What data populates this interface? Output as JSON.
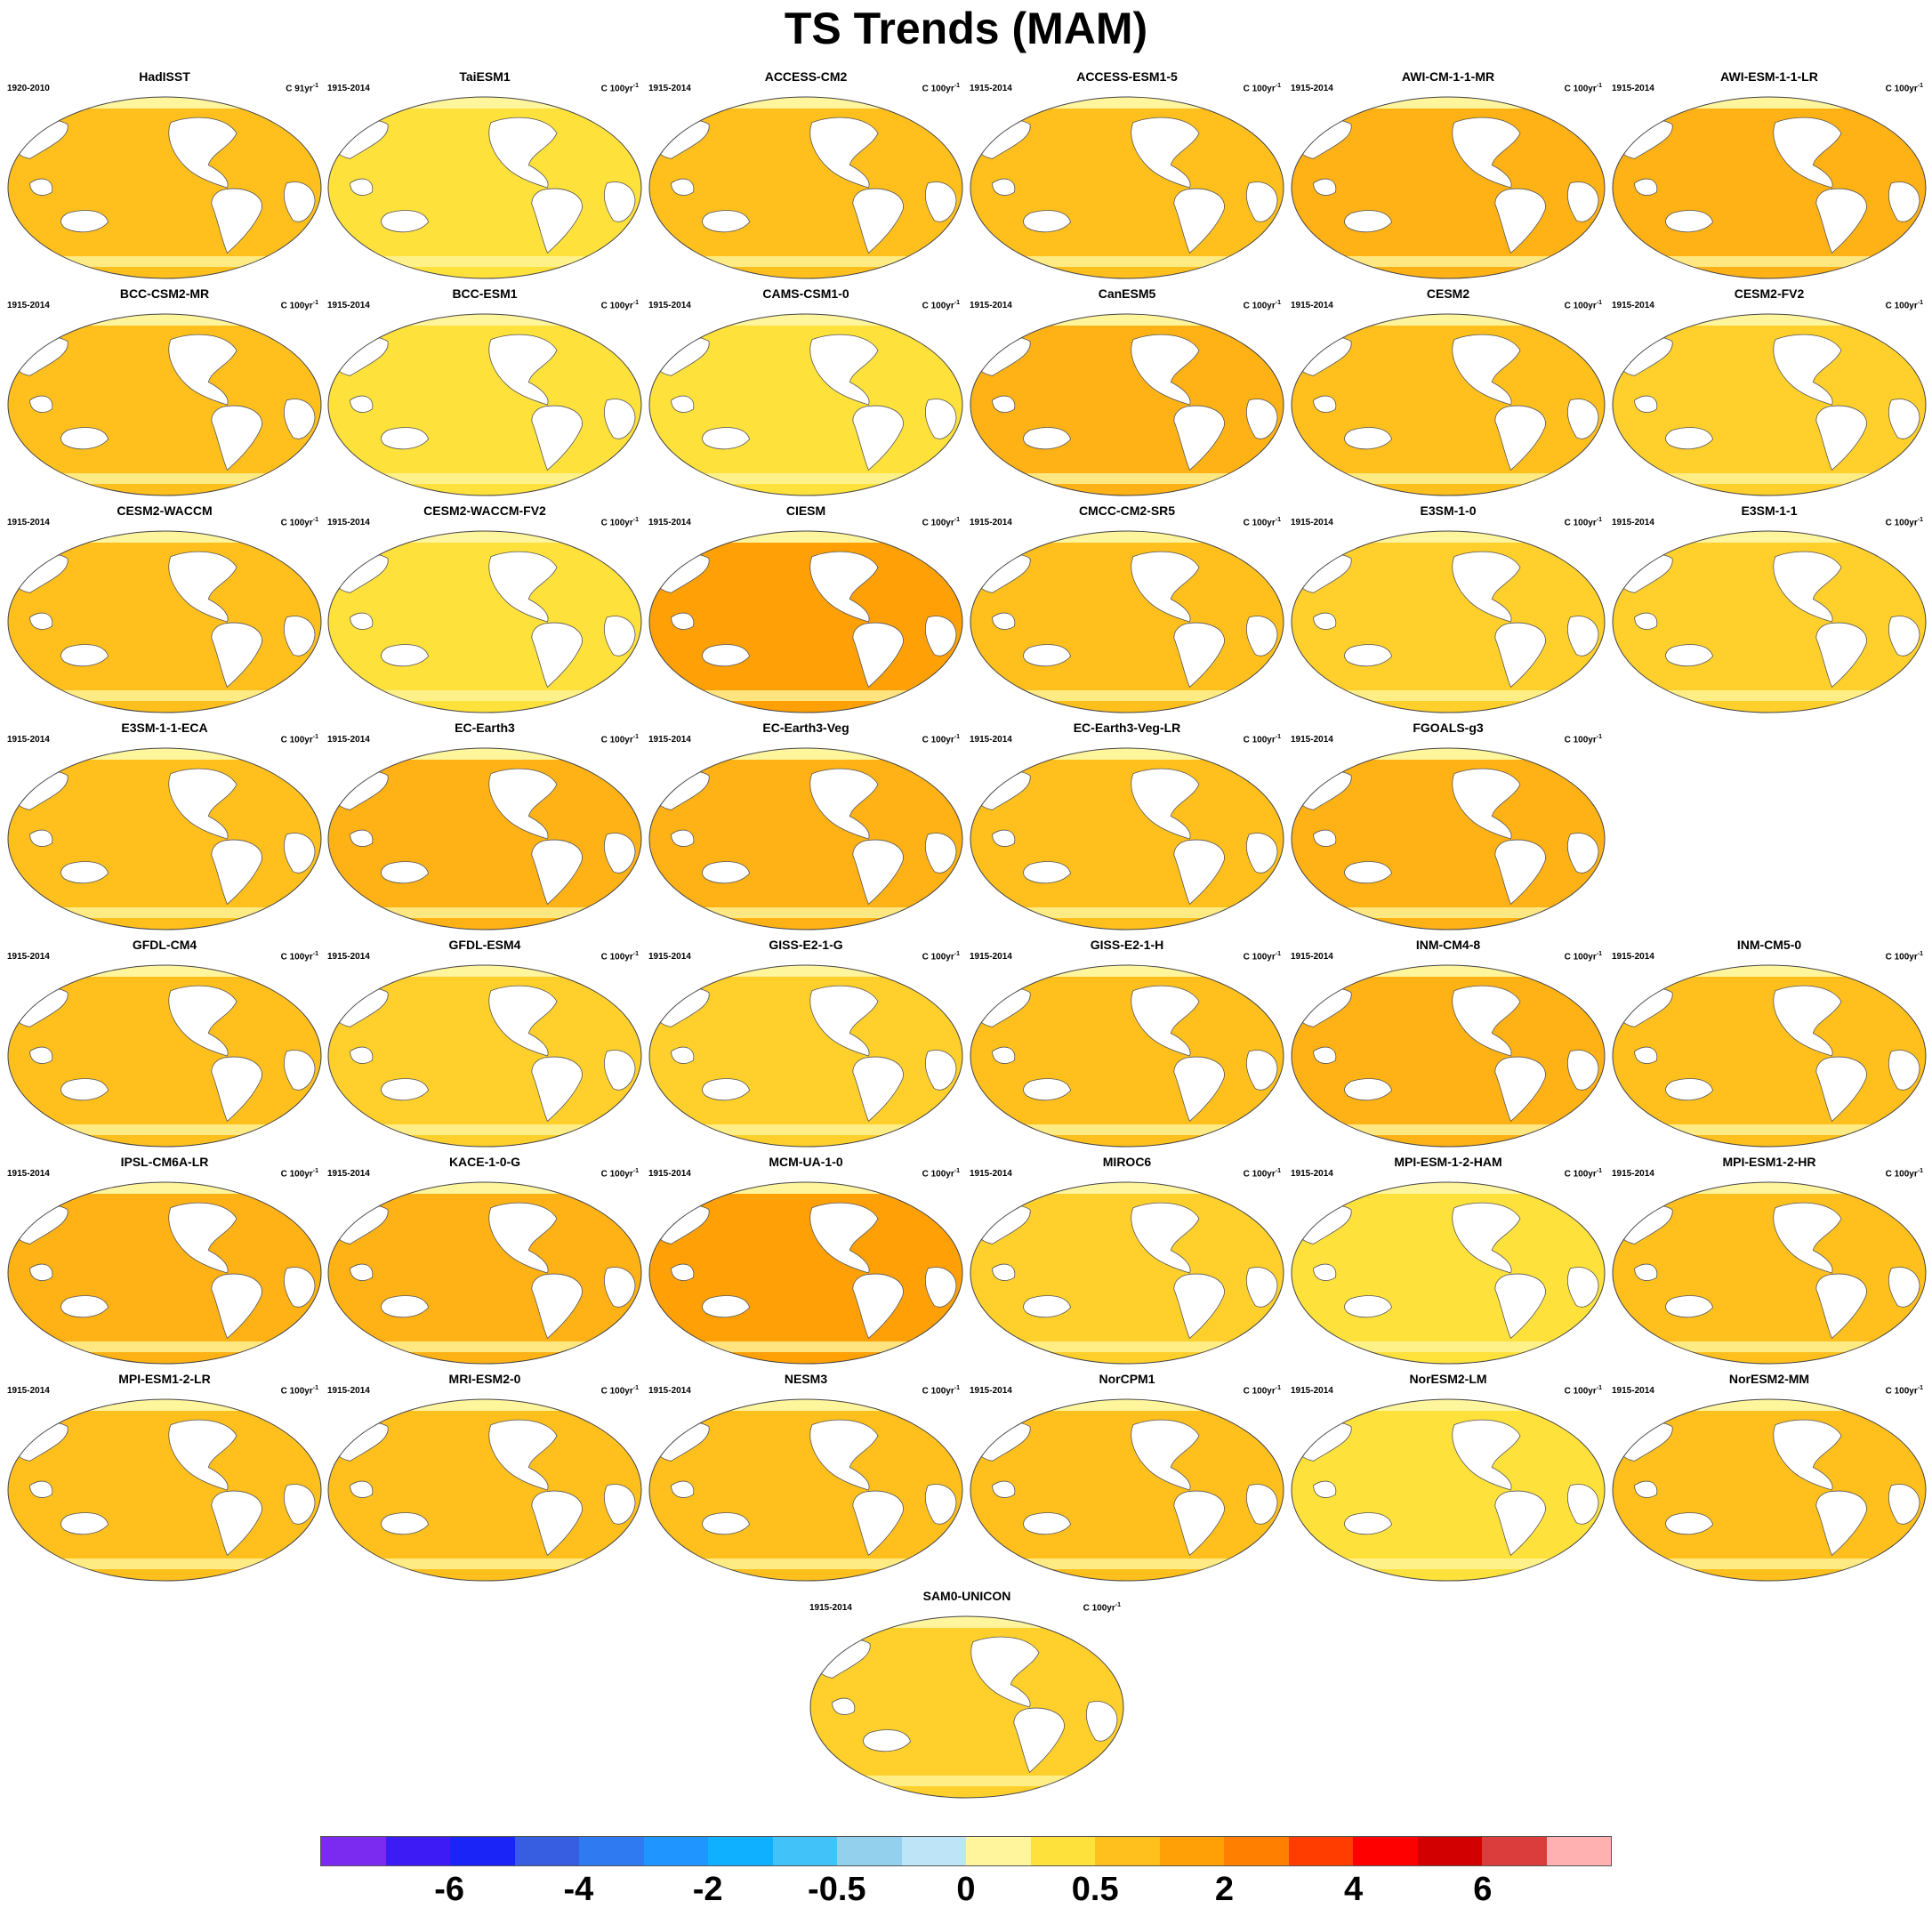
{
  "title": "TS Trends (MAM)",
  "colorbar": {
    "colors": [
      "#7b2bf0",
      "#3d1bf5",
      "#1a24f7",
      "#375ee0",
      "#2f7af0",
      "#1f96ff",
      "#0fb0ff",
      "#41c3fa",
      "#92d0ee",
      "#bde4f7",
      "#fff59d",
      "#ffe13c",
      "#ffc01e",
      "#ffa106",
      "#ff7f00",
      "#ff3d00",
      "#ff0000",
      "#d30000",
      "#db3c3c",
      "#ffb0b0"
    ],
    "labels": [
      "-6",
      "-4",
      "-2",
      "-0.5",
      "0",
      "0.5",
      "2",
      "4",
      "6"
    ]
  },
  "panels": [
    {
      "name": "HadISST",
      "period": "1920-2010",
      "units": "C 91yr",
      "sup": "-1",
      "fill": "#ffc01e"
    },
    {
      "name": "TaiESM1",
      "period": "1915-2014",
      "units": "C 100yr",
      "sup": "-1",
      "fill": "#ffe13c"
    },
    {
      "name": "ACCESS-CM2",
      "period": "1915-2014",
      "units": "C 100yr",
      "sup": "-1",
      "fill": "#ffc01e"
    },
    {
      "name": "ACCESS-ESM1-5",
      "period": "1915-2014",
      "units": "C 100yr",
      "sup": "-1",
      "fill": "#ffc01e"
    },
    {
      "name": "AWI-CM-1-1-MR",
      "period": "1915-2014",
      "units": "C 100yr",
      "sup": "-1",
      "fill": "#ffb215"
    },
    {
      "name": "AWI-ESM-1-1-LR",
      "period": "1915-2014",
      "units": "C 100yr",
      "sup": "-1",
      "fill": "#ffb215"
    },
    {
      "name": "BCC-CSM2-MR",
      "period": "1915-2014",
      "units": "C 100yr",
      "sup": "-1",
      "fill": "#ffc01e"
    },
    {
      "name": "BCC-ESM1",
      "period": "1915-2014",
      "units": "C 100yr",
      "sup": "-1",
      "fill": "#ffe13c"
    },
    {
      "name": "CAMS-CSM1-0",
      "period": "1915-2014",
      "units": "C 100yr",
      "sup": "-1",
      "fill": "#ffe13c"
    },
    {
      "name": "CanESM5",
      "period": "1915-2014",
      "units": "C 100yr",
      "sup": "-1",
      "fill": "#ffb215"
    },
    {
      "name": "CESM2",
      "period": "1915-2014",
      "units": "C 100yr",
      "sup": "-1",
      "fill": "#ffc01e"
    },
    {
      "name": "CESM2-FV2",
      "period": "1915-2014",
      "units": "C 100yr",
      "sup": "-1",
      "fill": "#ffd02c"
    },
    {
      "name": "CESM2-WACCM",
      "period": "1915-2014",
      "units": "C 100yr",
      "sup": "-1",
      "fill": "#ffc01e"
    },
    {
      "name": "CESM2-WACCM-FV2",
      "period": "1915-2014",
      "units": "C 100yr",
      "sup": "-1",
      "fill": "#ffe13c"
    },
    {
      "name": "CIESM",
      "period": "1915-2014",
      "units": "C 100yr",
      "sup": "-1",
      "fill": "#ffa106"
    },
    {
      "name": "CMCC-CM2-SR5",
      "period": "1915-2014",
      "units": "C 100yr",
      "sup": "-1",
      "fill": "#ffc01e"
    },
    {
      "name": "E3SM-1-0",
      "period": "1915-2014",
      "units": "C 100yr",
      "sup": "-1",
      "fill": "#ffd02c"
    },
    {
      "name": "E3SM-1-1",
      "period": "1915-2014",
      "units": "C 100yr",
      "sup": "-1",
      "fill": "#ffd02c"
    },
    {
      "name": "E3SM-1-1-ECA",
      "period": "1915-2014",
      "units": "C 100yr",
      "sup": "-1",
      "fill": "#ffc01e"
    },
    {
      "name": "EC-Earth3",
      "period": "1915-2014",
      "units": "C 100yr",
      "sup": "-1",
      "fill": "#ffb215"
    },
    {
      "name": "EC-Earth3-Veg",
      "period": "1915-2014",
      "units": "C 100yr",
      "sup": "-1",
      "fill": "#ffb215"
    },
    {
      "name": "EC-Earth3-Veg-LR",
      "period": "1915-2014",
      "units": "C 100yr",
      "sup": "-1",
      "fill": "#ffc01e"
    },
    {
      "name": "FGOALS-g3",
      "period": "1915-2014",
      "units": "C 100yr",
      "sup": "-1",
      "fill": "#ffb215"
    },
    {
      "name": "GFDL-CM4",
      "period": "1915-2014",
      "units": "C 100yr",
      "sup": "-1",
      "fill": "#ffc01e"
    },
    {
      "name": "GFDL-ESM4",
      "period": "1915-2014",
      "units": "C 100yr",
      "sup": "-1",
      "fill": "#ffd02c"
    },
    {
      "name": "GISS-E2-1-G",
      "period": "1915-2014",
      "units": "C 100yr",
      "sup": "-1",
      "fill": "#ffd02c"
    },
    {
      "name": "GISS-E2-1-H",
      "period": "1915-2014",
      "units": "C 100yr",
      "sup": "-1",
      "fill": "#ffc01e"
    },
    {
      "name": "INM-CM4-8",
      "period": "1915-2014",
      "units": "C 100yr",
      "sup": "-1",
      "fill": "#ffb215"
    },
    {
      "name": "INM-CM5-0",
      "period": "1915-2014",
      "units": "C 100yr",
      "sup": "-1",
      "fill": "#ffc01e"
    },
    {
      "name": "IPSL-CM6A-LR",
      "period": "1915-2014",
      "units": "C 100yr",
      "sup": "-1",
      "fill": "#ffb215"
    },
    {
      "name": "KACE-1-0-G",
      "period": "1915-2014",
      "units": "C 100yr",
      "sup": "-1",
      "fill": "#ffb215"
    },
    {
      "name": "MCM-UA-1-0",
      "period": "1915-2014",
      "units": "C 100yr",
      "sup": "-1",
      "fill": "#ffa106"
    },
    {
      "name": "MIROC6",
      "period": "1915-2014",
      "units": "C 100yr",
      "sup": "-1",
      "fill": "#ffd02c"
    },
    {
      "name": "MPI-ESM-1-2-HAM",
      "period": "1915-2014",
      "units": "C 100yr",
      "sup": "-1",
      "fill": "#ffe13c"
    },
    {
      "name": "MPI-ESM1-2-HR",
      "period": "1915-2014",
      "units": "C 100yr",
      "sup": "-1",
      "fill": "#ffc01e"
    },
    {
      "name": "MPI-ESM1-2-LR",
      "period": "1915-2014",
      "units": "C 100yr",
      "sup": "-1",
      "fill": "#ffc01e"
    },
    {
      "name": "MRI-ESM2-0",
      "period": "1915-2014",
      "units": "C 100yr",
      "sup": "-1",
      "fill": "#ffc01e"
    },
    {
      "name": "NESM3",
      "period": "1915-2014",
      "units": "C 100yr",
      "sup": "-1",
      "fill": "#ffc01e"
    },
    {
      "name": "NorCPM1",
      "period": "1915-2014",
      "units": "C 100yr",
      "sup": "-1",
      "fill": "#ffc01e"
    },
    {
      "name": "NorESM2-LM",
      "period": "1915-2014",
      "units": "C 100yr",
      "sup": "-1",
      "fill": "#ffe13c"
    },
    {
      "name": "NorESM2-MM",
      "period": "1915-2014",
      "units": "C 100yr",
      "sup": "-1",
      "fill": "#ffc01e"
    },
    {
      "name": "SAM0-UNICON",
      "period": "1915-2014",
      "units": "C 100yr",
      "sup": "-1",
      "fill": "#ffd02c"
    }
  ]
}
